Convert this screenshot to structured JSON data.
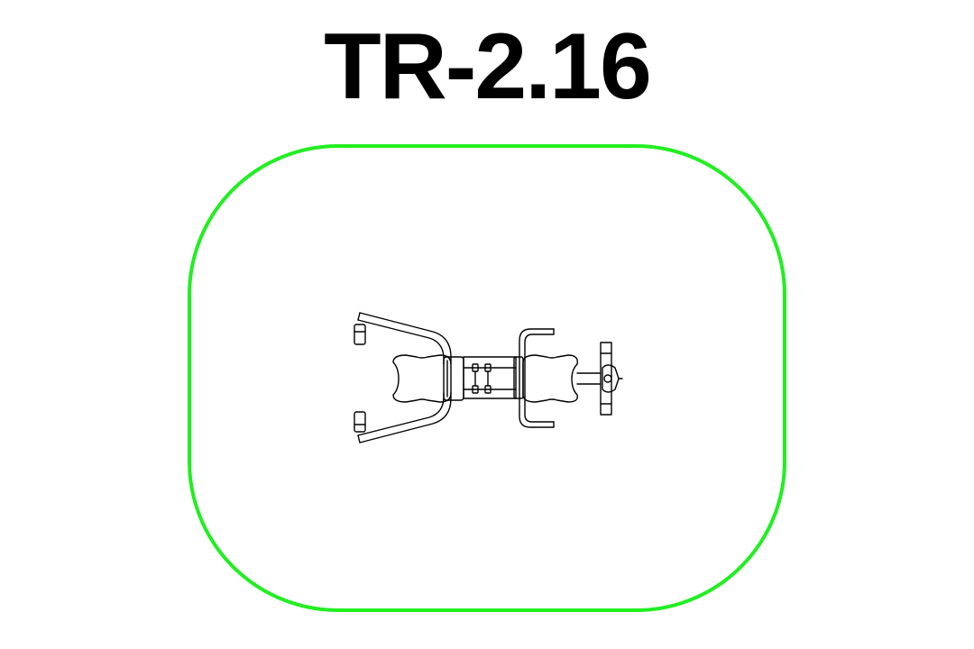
{
  "title": "TR-2.16",
  "colors": {
    "background": "#ffffff",
    "title": "#000000",
    "safety_zone": "#22ee22",
    "line": "#000000"
  },
  "diagram": {
    "type": "equipment-top-view",
    "elements": [
      "safety-zone-outline",
      "equipment-plan"
    ]
  }
}
